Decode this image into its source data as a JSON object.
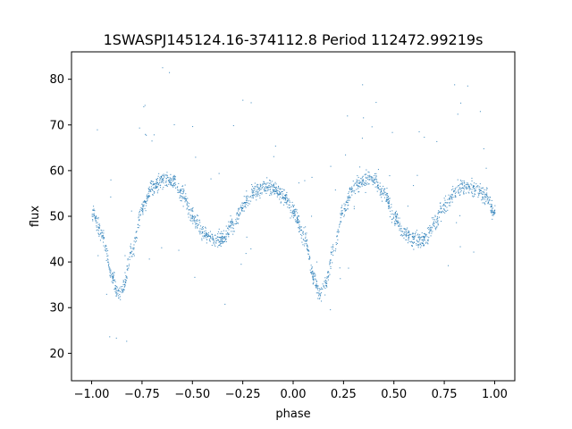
{
  "chart_data": {
    "type": "scatter",
    "title": "1SWASPJ145124.16-374112.8 Period 112472.99219s",
    "xlabel": "phase",
    "ylabel": "flux",
    "xlim": [
      -1.1,
      1.1
    ],
    "ylim": [
      14,
      86
    ],
    "xticks": [
      -1.0,
      -0.75,
      -0.5,
      -0.25,
      0.0,
      0.25,
      0.5,
      0.75,
      1.0
    ],
    "xtick_labels": [
      "−1.00",
      "−0.75",
      "−0.50",
      "−0.25",
      "0.00",
      "0.25",
      "0.50",
      "0.75",
      "1.00"
    ],
    "yticks": [
      20,
      30,
      40,
      50,
      60,
      70,
      80
    ],
    "ytick_labels": [
      "20",
      "30",
      "40",
      "50",
      "60",
      "70",
      "80"
    ],
    "grid": false,
    "legend": "none",
    "marker_color": "#1f77b4",
    "series": [
      {
        "curve": {
          "x": [
            0.0,
            0.05,
            0.1,
            0.13,
            0.15,
            0.2,
            0.25,
            0.3,
            0.35,
            0.38,
            0.4,
            0.45,
            0.5,
            0.55,
            0.6,
            0.63,
            0.65,
            0.7,
            0.75,
            0.8,
            0.85,
            0.88,
            0.9,
            0.95,
            1.0
          ],
          "y": [
            51,
            46,
            37,
            33,
            34,
            43,
            52,
            56.5,
            58,
            58.2,
            57.8,
            55,
            50,
            46.5,
            45,
            44.8,
            45.2,
            48.5,
            52.5,
            55.5,
            56.5,
            56.6,
            56.2,
            54.5,
            51
          ]
        },
        "period": 1.0,
        "scatter_band": 0.9,
        "outlier_fraction": 0.03
      }
    ]
  }
}
